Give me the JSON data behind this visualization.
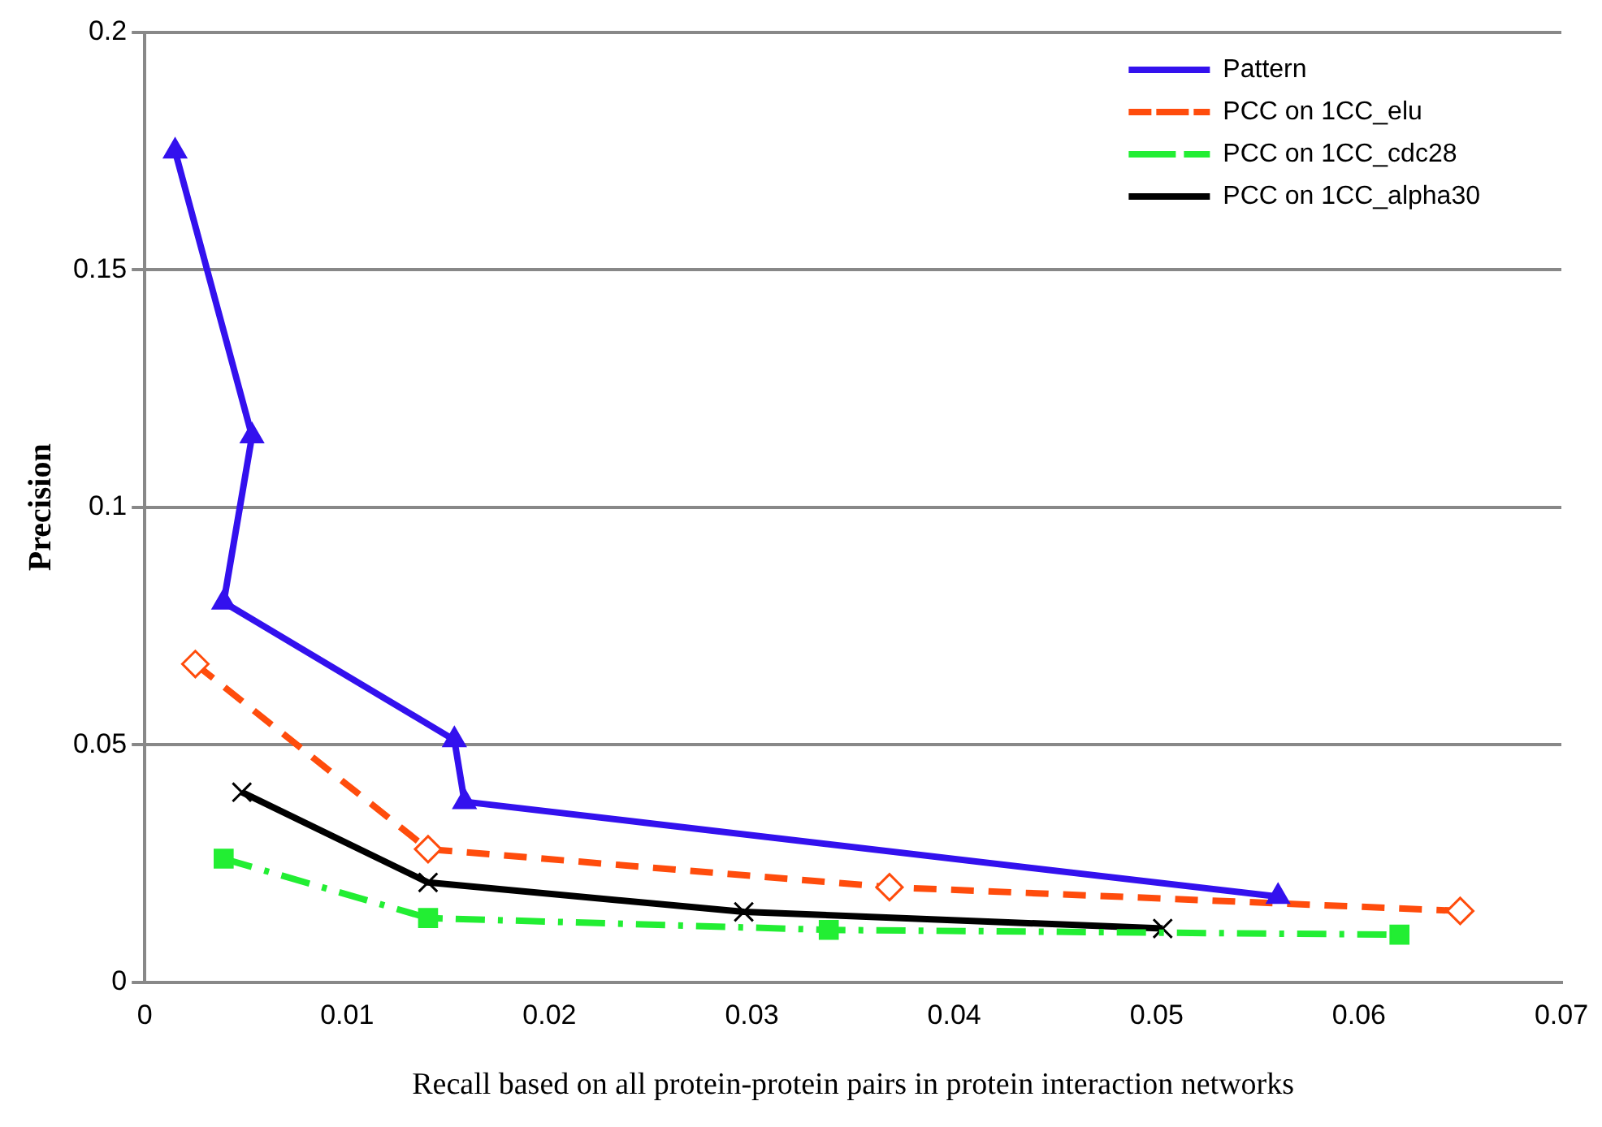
{
  "chart_data": {
    "type": "line",
    "xlabel": "Recall based on all protein-protein pairs in protein interaction networks",
    "ylabel": "Precision",
    "xlim": [
      0,
      0.07
    ],
    "xticks": [
      0,
      0.01,
      0.02,
      0.03,
      0.04,
      0.05,
      0.06,
      0.07
    ],
    "ylim": [
      0,
      0.2
    ],
    "yticks": [
      0,
      0.05,
      0.1,
      0.15,
      0.2
    ],
    "grid": "y",
    "legend": "top right",
    "series": [
      {
        "name": "Pattern",
        "color": "#3311ee",
        "marker": "triangle",
        "line_style": "solid",
        "x": [
          0.0015,
          0.0053,
          0.0039,
          0.0153,
          0.0158,
          0.056
        ],
        "values": [
          0.175,
          0.115,
          0.08,
          0.051,
          0.038,
          0.018
        ]
      },
      {
        "name": "PCC on 1CC_elu",
        "color": "#ff4c0c",
        "marker": "diamond",
        "line_style": "dashed",
        "x": [
          0.0025,
          0.014,
          0.0368,
          0.065
        ],
        "values": [
          0.067,
          0.028,
          0.02,
          0.015
        ]
      },
      {
        "name": "PCC on 1CC_cdc28",
        "color": "#22ee33",
        "marker": "square",
        "line_style": "dashdot",
        "x": [
          0.0039,
          0.014,
          0.0338,
          0.062
        ],
        "values": [
          0.026,
          0.0135,
          0.011,
          0.01
        ]
      },
      {
        "name": "PCC on 1CC_alpha30",
        "color": "#000000",
        "marker": "cross",
        "line_style": "solid",
        "x": [
          0.0048,
          0.014,
          0.0296,
          0.0503
        ],
        "values": [
          0.04,
          0.021,
          0.0148,
          0.0113
        ]
      }
    ]
  }
}
